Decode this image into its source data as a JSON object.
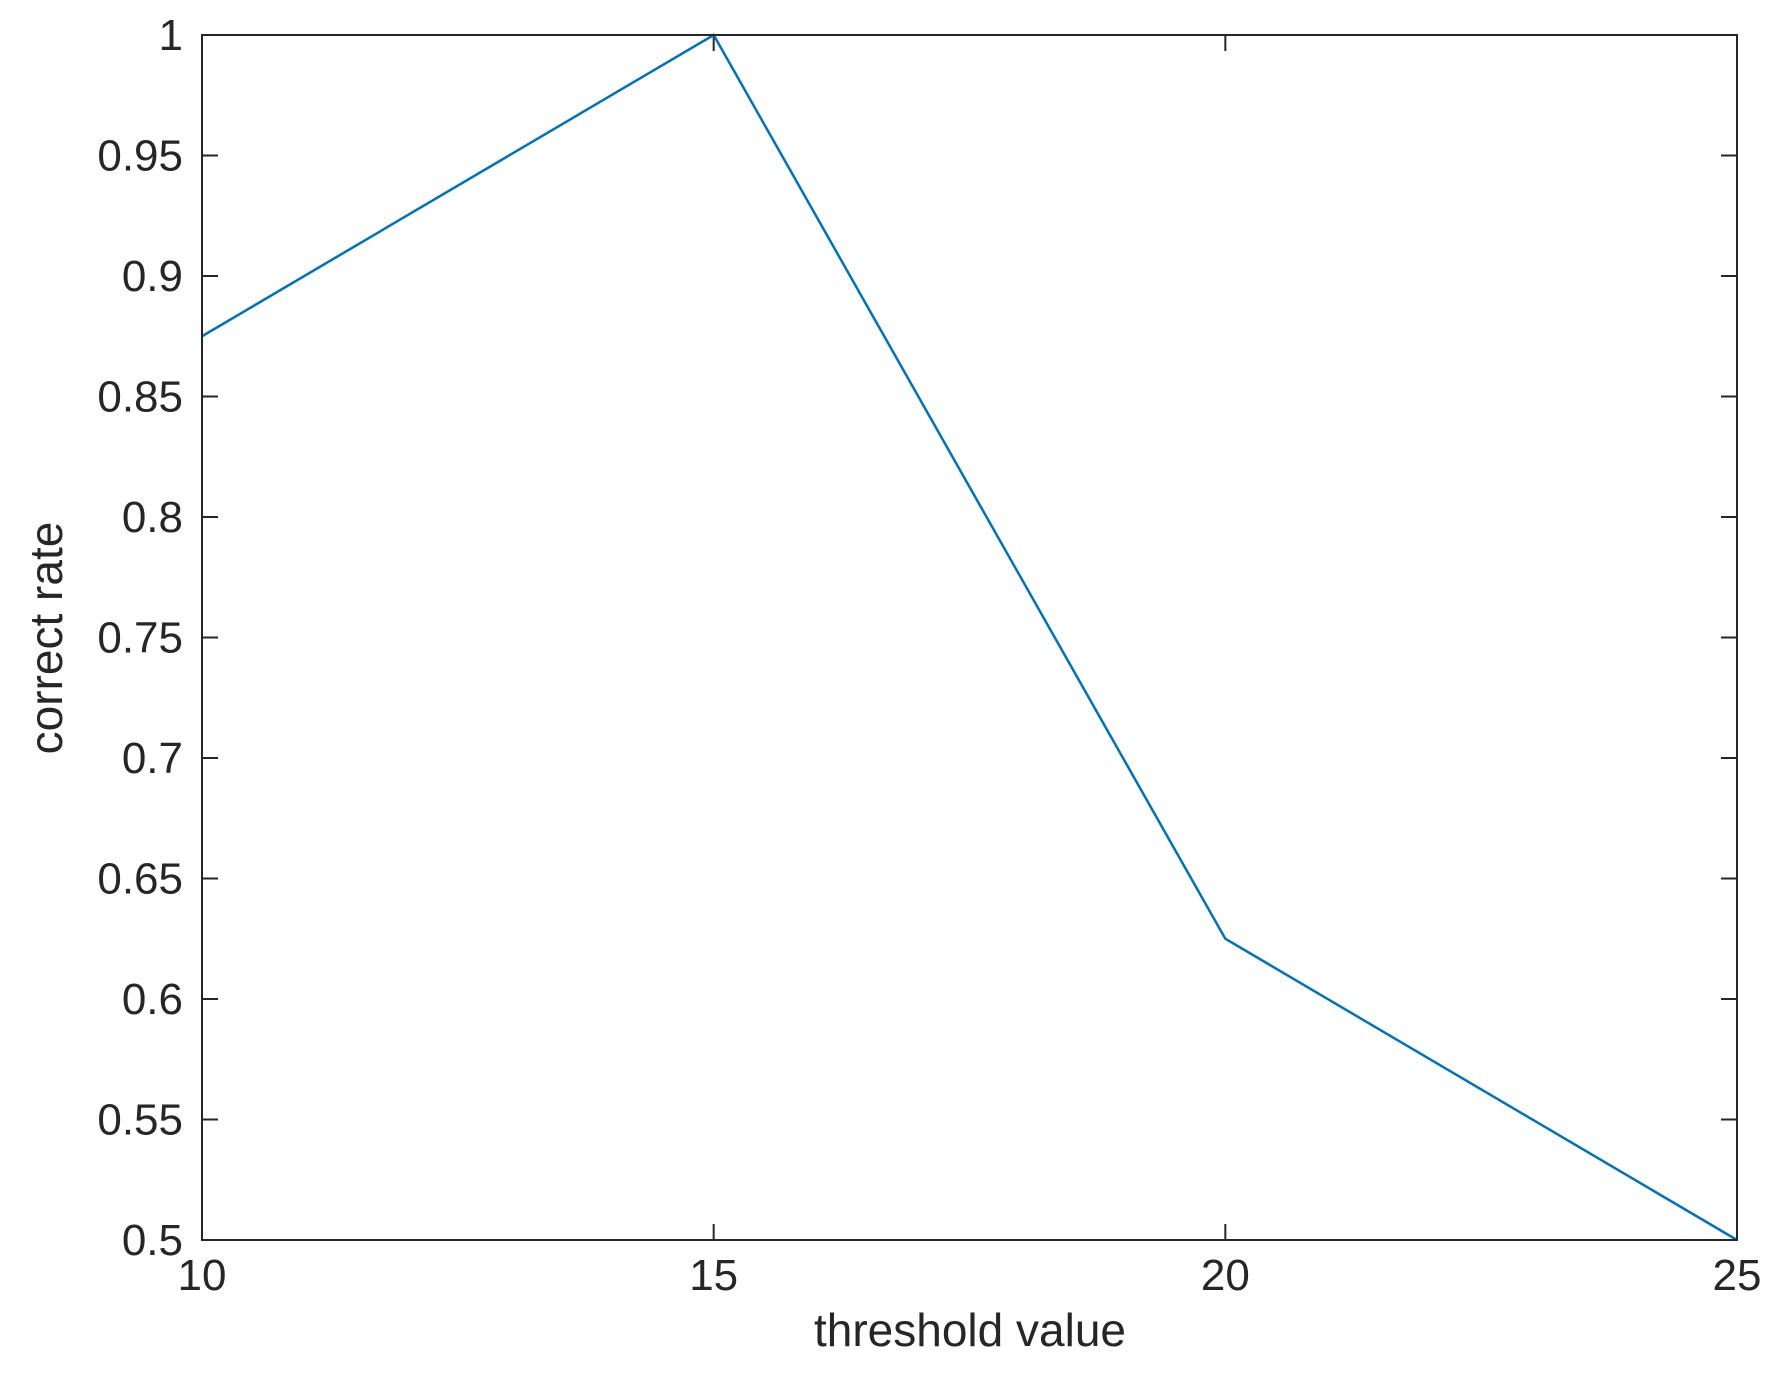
{
  "chart_data": {
    "type": "line",
    "title": "",
    "xlabel": "threshold value",
    "ylabel": "correct rate",
    "xlim": [
      10,
      25
    ],
    "ylim": [
      0.5,
      1
    ],
    "x_ticks": [
      10,
      15,
      20,
      25
    ],
    "y_ticks": [
      0.5,
      0.55,
      0.6,
      0.65,
      0.7,
      0.75,
      0.8,
      0.85,
      0.9,
      0.95,
      1
    ],
    "x_tick_labels": [
      "10",
      "15",
      "20",
      "25"
    ],
    "y_tick_labels": [
      "0.5",
      "0.55",
      "0.6",
      "0.65",
      "0.7",
      "0.75",
      "0.8",
      "0.85",
      "0.9",
      "0.95",
      "1"
    ],
    "grid": false,
    "series": [
      {
        "x": [
          10,
          15,
          20,
          25
        ],
        "values": [
          0.875,
          1.0,
          0.625,
          0.5
        ],
        "color": "#0072BD"
      }
    ]
  }
}
